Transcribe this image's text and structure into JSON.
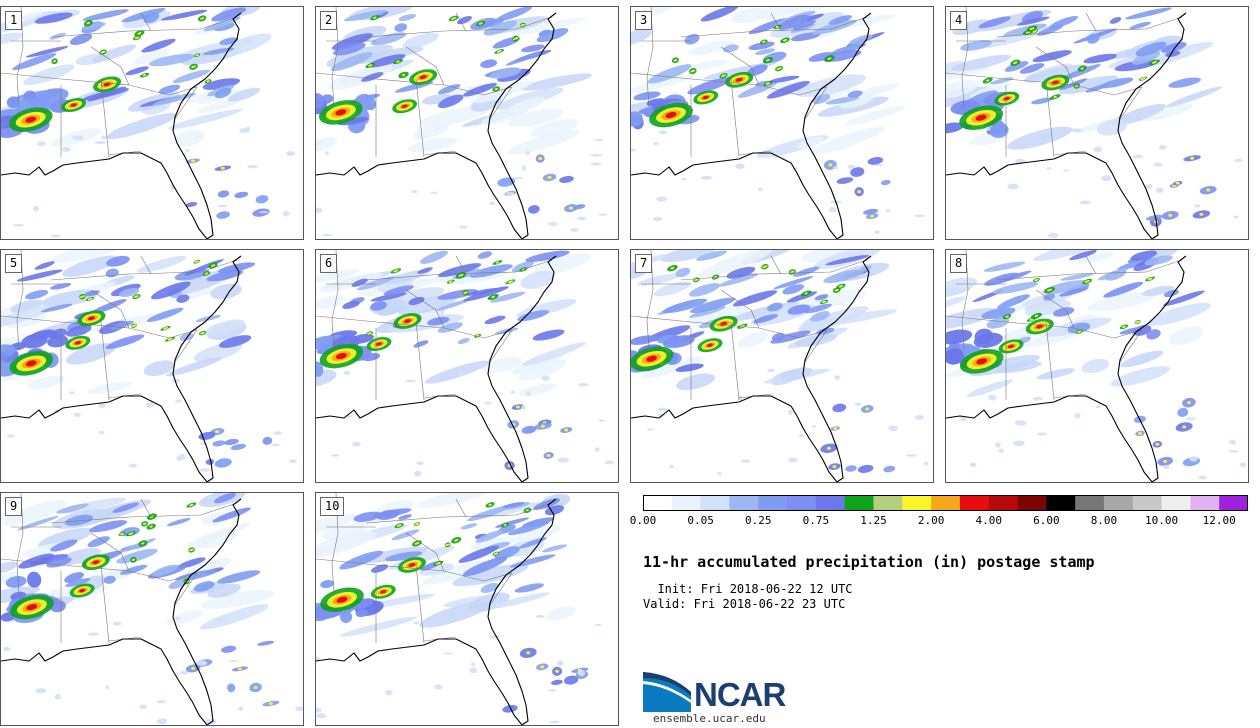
{
  "panels": [
    {
      "label": "1"
    },
    {
      "label": "2"
    },
    {
      "label": "3"
    },
    {
      "label": "4"
    },
    {
      "label": "5"
    },
    {
      "label": "6"
    },
    {
      "label": "7"
    },
    {
      "label": "8"
    },
    {
      "label": "9"
    },
    {
      "label": "10"
    }
  ],
  "title": "11-hr accumulated precipitation (in) postage stamp",
  "init_line": "  Init: Fri 2018-06-22 12 UTC",
  "valid_line": "Valid: Fri 2018-06-22 23 UTC",
  "colorbar": {
    "colors": [
      "#ffffff",
      "#eaf3fd",
      "#d2e1fa",
      "#9cb7f2",
      "#7f9cf3",
      "#7c8ff2",
      "#6c78ea",
      "#0ea21f",
      "#b4d07e",
      "#f9f52a",
      "#f5a81c",
      "#e50d10",
      "#b90a0b",
      "#7e0303",
      "#000000",
      "#777777",
      "#a8a8a8",
      "#c8c8c8",
      "#efefef",
      "#e2b2f2",
      "#9f21dc"
    ],
    "labels": [
      "0.00",
      "0.05",
      "0.25",
      "0.75",
      "1.25",
      "2.00",
      "4.00",
      "6.00",
      "8.00",
      "10.00",
      "12.00"
    ]
  },
  "logo": {
    "text": "NCAR",
    "url": "ensemble.ucar.edu"
  }
}
